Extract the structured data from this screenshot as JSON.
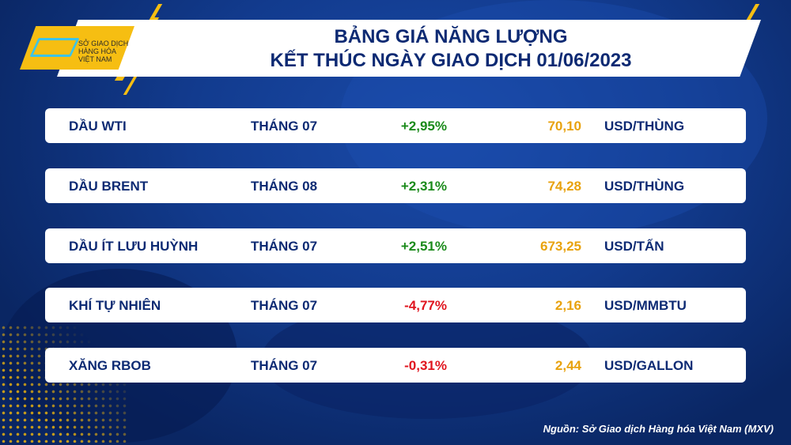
{
  "logo": {
    "lines": [
      "SỞ GIAO DỊCH",
      "HÀNG HÓA",
      "VIỆT NAM"
    ]
  },
  "title": {
    "line1": "BẢNG GIÁ NĂNG LƯỢNG",
    "line2": "KẾT THÚC NGÀY GIAO DỊCH 01/06/2023"
  },
  "colors": {
    "up": "#1a8a1a",
    "down": "#e0141e",
    "price": "#e8a20e",
    "text": "#0d2a73"
  },
  "rows": [
    {
      "name": "DẦU WTI",
      "month": "THÁNG 07",
      "change": "+2,95%",
      "price": "70,10",
      "unit": "USD/THÙNG",
      "dir": "up"
    },
    {
      "name": "DẦU BRENT",
      "month": "THÁNG 08",
      "change": "+2,31%",
      "price": "74,28",
      "unit": "USD/THÙNG",
      "dir": "up"
    },
    {
      "name": "DẦU ÍT LƯU HUỲNH",
      "month": "THÁNG 07",
      "change": "+2,51%",
      "price": "673,25",
      "unit": "USD/TẤN",
      "dir": "up"
    },
    {
      "name": "KHÍ TỰ NHIÊN",
      "month": "THÁNG 07",
      "change": "-4,77%",
      "price": "2,16",
      "unit": "USD/MMBTU",
      "dir": "down"
    },
    {
      "name": "XĂNG RBOB",
      "month": "THÁNG 07",
      "change": "-0,31%",
      "price": "2,44",
      "unit": "USD/GALLON",
      "dir": "down"
    }
  ],
  "source": "Nguồn: Sở Giao dịch Hàng hóa Việt Nam (MXV)"
}
